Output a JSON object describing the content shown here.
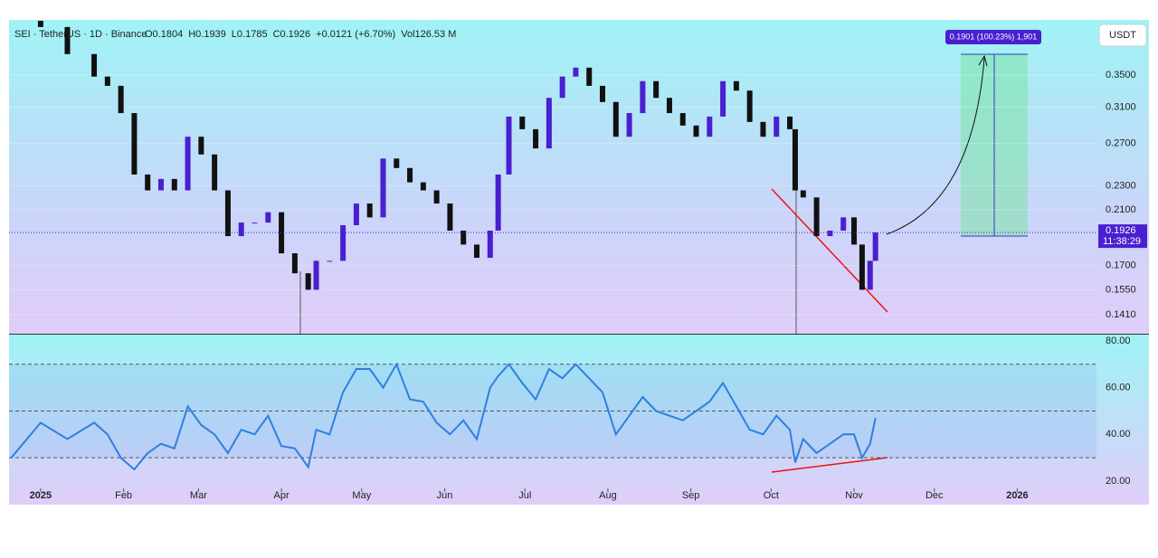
{
  "chart_data": [
    {
      "type": "candlestick",
      "symbol": "SEI · TetherUS · 1D · Binance",
      "ohlc": [
        "O0.1804",
        "H0.1939",
        "L0.1785",
        "C0.1926",
        "+0.0121 (+6.70%)",
        "Vol126.53 M"
      ],
      "currency": "USDT",
      "last_price": 0.1926,
      "countdown": "11:38:29",
      "target_label": "0.1901 (100.23%) 1,901",
      "log_scale": true,
      "up_color": "#4a1fcf",
      "down_color": "#111111",
      "x": [
        -11,
        0,
        10,
        20,
        25,
        30,
        35,
        40,
        45,
        50,
        55,
        60,
        65,
        70,
        75,
        80,
        85,
        90,
        95,
        100,
        103,
        108,
        113,
        118,
        123,
        128,
        133,
        138,
        143,
        148,
        153,
        158,
        163,
        168,
        171,
        175,
        180,
        185,
        190,
        195,
        200,
        205,
        210,
        215,
        220,
        225,
        230,
        235,
        240,
        245,
        250,
        255,
        260,
        265,
        270,
        275,
        280,
        282,
        285,
        290,
        295,
        300,
        304,
        307,
        310,
        312
      ],
      "values": [
        0.43,
        0.42,
        0.379,
        0.348,
        0.336,
        0.303,
        0.24,
        0.226,
        0.236,
        0.226,
        0.277,
        0.259,
        0.226,
        0.19,
        0.2,
        0.2,
        0.208,
        0.178,
        0.165,
        0.155,
        0.173,
        0.173,
        0.198,
        0.215,
        0.204,
        0.255,
        0.246,
        0.233,
        0.226,
        0.215,
        0.194,
        0.184,
        0.175,
        0.194,
        0.24,
        0.299,
        0.285,
        0.265,
        0.321,
        0.348,
        0.36,
        0.336,
        0.316,
        0.277,
        0.303,
        0.342,
        0.321,
        0.303,
        0.289,
        0.277,
        0.299,
        0.342,
        0.33,
        0.293,
        0.277,
        0.299,
        0.285,
        0.226,
        0.22,
        0.19,
        0.194,
        0.204,
        0.184,
        0.155,
        0.173,
        0.1926
      ],
      "xlim": [
        -11.8,
        394.6
      ],
      "ylim": [
        0.1312,
        0.4315
      ],
      "yticks": [
        {
          "value": 0.35,
          "label": "0.3500"
        },
        {
          "value": 0.31,
          "label": "0.3100"
        },
        {
          "value": 0.27,
          "label": "0.2700"
        },
        {
          "value": 0.23,
          "label": "0.2300"
        },
        {
          "value": 0.21,
          "label": "0.2100"
        },
        {
          "value": 0.17,
          "label": "0.1700"
        },
        {
          "value": 0.155,
          "label": "0.1550"
        },
        {
          "value": 0.141,
          "label": "0.1410"
        }
      ]
    },
    {
      "type": "line",
      "color": "#2f7fe0",
      "x": [
        -11,
        0,
        10,
        20,
        25,
        30,
        35,
        40,
        45,
        50,
        55,
        60,
        65,
        70,
        75,
        80,
        85,
        90,
        95,
        100,
        103,
        108,
        113,
        118,
        123,
        128,
        133,
        138,
        143,
        148,
        153,
        158,
        163,
        168,
        171,
        175,
        180,
        185,
        190,
        195,
        200,
        205,
        210,
        215,
        220,
        225,
        230,
        235,
        240,
        245,
        250,
        255,
        260,
        265,
        270,
        275,
        280,
        282,
        285,
        290,
        295,
        300,
        304,
        307,
        310,
        312
      ],
      "values": [
        30,
        45,
        38,
        45,
        40,
        30,
        25,
        32,
        36,
        34,
        52,
        44,
        40,
        32,
        42,
        40,
        48,
        35,
        34,
        26,
        42,
        40,
        58,
        68,
        68,
        60,
        70,
        55,
        54,
        45,
        40,
        46,
        38,
        60,
        65,
        70,
        62,
        55,
        68,
        64,
        70,
        64,
        58,
        40,
        48,
        56,
        50,
        48,
        46,
        50,
        54,
        62,
        52,
        42,
        40,
        48,
        42,
        28,
        38,
        32,
        36,
        40,
        40,
        30,
        36,
        47
      ],
      "xlim": [
        -11.8,
        394.6
      ],
      "ylim": [
        16.9,
        82.7
      ],
      "yticks": [
        {
          "value": 80,
          "label": "80.00"
        },
        {
          "value": 60,
          "label": "60.00"
        },
        {
          "value": 40,
          "label": "40.00"
        },
        {
          "value": 20,
          "label": "20.00"
        }
      ],
      "levels": [
        70,
        50,
        30
      ],
      "xticks": [
        {
          "value": 0,
          "label": "2025"
        },
        {
          "value": 31,
          "label": "Feb"
        },
        {
          "value": 59,
          "label": "Mar"
        },
        {
          "value": 90,
          "label": "Apr"
        },
        {
          "value": 120,
          "label": "May"
        },
        {
          "value": 151,
          "label": "Jun"
        },
        {
          "value": 181,
          "label": "Jul"
        },
        {
          "value": 212,
          "label": "Aug"
        },
        {
          "value": 243,
          "label": "Sep"
        },
        {
          "value": 273,
          "label": "Oct"
        },
        {
          "value": 304,
          "label": "Nov"
        },
        {
          "value": 334,
          "label": "Dec"
        },
        {
          "value": 365,
          "label": "2026"
        }
      ]
    }
  ]
}
